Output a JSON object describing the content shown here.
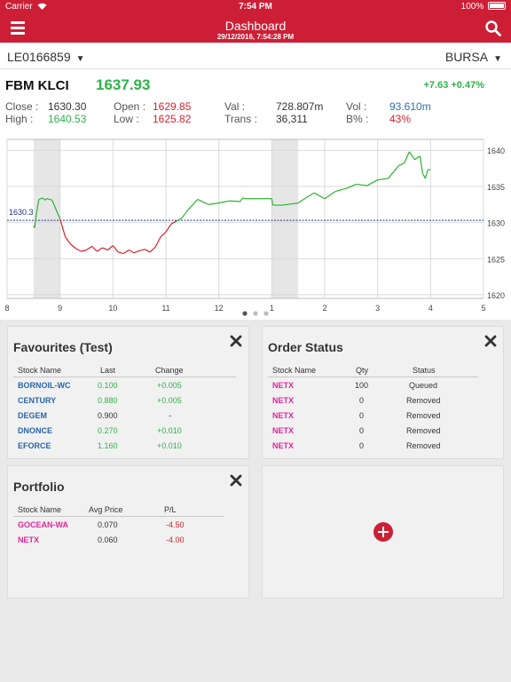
{
  "status_bar": {
    "carrier": "Carrier",
    "time": "7:54 PM",
    "battery": "100%"
  },
  "nav": {
    "title": "Dashboard",
    "subtitle": "29/12/2016, 7:54:28 PM",
    "menu_icon": "hamburger-menu-icon",
    "search_icon": "search-icon",
    "accent_color": "#cc1f36"
  },
  "account": {
    "id": "LE0166859",
    "exchange": "BURSA"
  },
  "quote": {
    "name": "FBM KLCI",
    "price": "1637.93",
    "change": "+7.63 +0.47%",
    "close_label": "Close :",
    "close": "1630.30",
    "high_label": "High :",
    "high": "1640.53",
    "open_label": "Open :",
    "open": "1629.85",
    "low_label": "Low :",
    "low": "1625.82",
    "val_label": "Val :",
    "val": "728.807m",
    "trans_label": "Trans :",
    "trans": "36,311",
    "vol_label": "Vol :",
    "vol": "93.610m",
    "bpct_label": "B% :",
    "bpct": "43%"
  },
  "chart_data": {
    "type": "line",
    "x_ticks": [
      "8",
      "9",
      "10",
      "11",
      "12",
      "1",
      "2",
      "3",
      "4",
      "5"
    ],
    "y_ticks": [
      "1620",
      "1625",
      "1630",
      "1635",
      "1640"
    ],
    "ylim": [
      1619.5,
      1641.5
    ],
    "reference": {
      "label": "1630.3",
      "value": 1630.3
    },
    "shaded_ranges": [
      [
        8.5,
        9.0
      ],
      [
        13.0,
        13.5
      ]
    ],
    "page_indicator": {
      "pages": 3,
      "active": 0
    },
    "series": [
      {
        "x": [
          8.5,
          8.52,
          8.56,
          8.6,
          8.67,
          8.72,
          8.75,
          8.85,
          9.0,
          9.1,
          9.2,
          9.3,
          9.4,
          9.5,
          9.6,
          9.7,
          9.8,
          9.9,
          10.0,
          10.1,
          10.2,
          10.3,
          10.4,
          10.5,
          10.6,
          10.7,
          10.8,
          10.9,
          11.0,
          11.1,
          11.2,
          11.3,
          11.4,
          11.5,
          11.6,
          11.8,
          12.0,
          12.2,
          12.4,
          12.45,
          12.5,
          12.8,
          13.0,
          13.02,
          13.2,
          13.4,
          13.5,
          13.6,
          13.8,
          14.0,
          14.2,
          14.4,
          14.6,
          14.8,
          15.0,
          15.2,
          15.4,
          15.5,
          15.6,
          15.7,
          15.8,
          15.85,
          15.9,
          15.95,
          16.0
        ],
        "y": [
          1629.5,
          1629.3,
          1631.5,
          1633.2,
          1633.4,
          1633.1,
          1633.3,
          1633.1,
          1630.5,
          1628.0,
          1627.0,
          1626.4,
          1626.0,
          1626.2,
          1626.7,
          1626.0,
          1626.5,
          1626.2,
          1626.8,
          1625.9,
          1625.7,
          1626.2,
          1625.8,
          1626.1,
          1626.3,
          1625.9,
          1626.6,
          1628.0,
          1628.7,
          1629.8,
          1630.2,
          1630.6,
          1631.6,
          1632.4,
          1633.2,
          1632.5,
          1632.7,
          1633.0,
          1632.9,
          1633.4,
          1633.3,
          1633.3,
          1633.3,
          1632.4,
          1632.4,
          1632.6,
          1632.7,
          1633.2,
          1634.1,
          1633.3,
          1634.3,
          1634.7,
          1635.3,
          1635.1,
          1635.9,
          1636.1,
          1637.9,
          1638.2,
          1639.8,
          1638.7,
          1639.2,
          1636.8,
          1636.1,
          1637.3,
          1637.3
        ]
      }
    ],
    "up_color": "#2bb32b",
    "down_color": "#d8222b"
  },
  "favourites": {
    "title": "Favourites (Test)",
    "columns": [
      "Stock Name",
      "Last",
      "Change"
    ],
    "rows": [
      {
        "name": "BORNOIL-WC",
        "last": "0.100",
        "change": "+0.005",
        "trend": "up"
      },
      {
        "name": "CENTURY",
        "last": "0.880",
        "change": "+0.005",
        "trend": "up"
      },
      {
        "name": "DEGEM",
        "last": "0.900",
        "change": "-",
        "trend": "flat"
      },
      {
        "name": "DNONCE",
        "last": "0.270",
        "change": "+0.010",
        "trend": "up"
      },
      {
        "name": "EFORCE",
        "last": "1.160",
        "change": "+0.010",
        "trend": "up"
      }
    ]
  },
  "order_status": {
    "title": "Order Status",
    "columns": [
      "Stock Name",
      "Qty",
      "Status"
    ],
    "rows": [
      {
        "name": "NETX",
        "qty": "100",
        "status": "Queued"
      },
      {
        "name": "NETX",
        "qty": "0",
        "status": "Removed"
      },
      {
        "name": "NETX",
        "qty": "0",
        "status": "Removed"
      },
      {
        "name": "NETX",
        "qty": "0",
        "status": "Removed"
      },
      {
        "name": "NETX",
        "qty": "0",
        "status": "Removed"
      }
    ]
  },
  "portfolio": {
    "title": "Portfolio",
    "columns": [
      "Stock Name",
      "Avg Price",
      "P/L"
    ],
    "rows": [
      {
        "name": "GOCEAN-WA",
        "avg": "0.070",
        "pl": "-4.50"
      },
      {
        "name": "NETX",
        "avg": "0.060",
        "pl": "-4.00"
      }
    ]
  },
  "add_widget": {
    "icon": "plus-circle-icon"
  }
}
